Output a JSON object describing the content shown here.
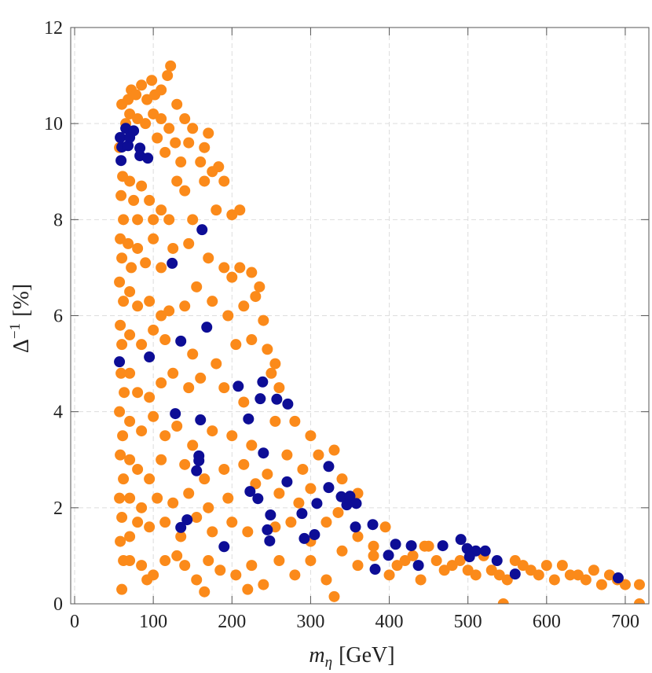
{
  "chart_data": {
    "type": "scatter",
    "xlabel": {
      "main": "m",
      "sub": "η",
      "unit": "[GeV]"
    },
    "ylabel": {
      "main": "Δ",
      "sup": "−1",
      "unit": "[%]"
    },
    "xlim": [
      -5,
      730
    ],
    "ylim": [
      0,
      12
    ],
    "xticks": [
      0,
      100,
      200,
      300,
      400,
      500,
      600,
      700
    ],
    "yticks": [
      0,
      2,
      4,
      6,
      8,
      10,
      12
    ],
    "grid": true,
    "series": [
      {
        "color": "#fb8a1a",
        "x": [
          60,
          62,
          58,
          60,
          57,
          62,
          58,
          61,
          57,
          63,
          59,
          60,
          58,
          62,
          57,
          60,
          58,
          62,
          59,
          61,
          57,
          65,
          60,
          68,
          72,
          78,
          85,
          92,
          98,
          102,
          110,
          122,
          118,
          70,
          80,
          90,
          100,
          110,
          120,
          130,
          140,
          128,
          105,
          115,
          135,
          145,
          150,
          165,
          170,
          160,
          175,
          183,
          190,
          70,
          75,
          80,
          85,
          95,
          100,
          110,
          120,
          130,
          140,
          150,
          165,
          180,
          200,
          210,
          68,
          72,
          80,
          90,
          100,
          110,
          125,
          145,
          170,
          190,
          200,
          210,
          225,
          235,
          70,
          80,
          95,
          110,
          120,
          140,
          155,
          175,
          195,
          215,
          230,
          240,
          70,
          85,
          100,
          115,
          150,
          180,
          205,
          225,
          245,
          255,
          70,
          80,
          95,
          110,
          125,
          145,
          160,
          190,
          215,
          250,
          260,
          70,
          85,
          100,
          115,
          130,
          150,
          175,
          200,
          225,
          255,
          280,
          300,
          70,
          80,
          95,
          110,
          140,
          165,
          190,
          215,
          245,
          270,
          290,
          310,
          330,
          70,
          85,
          105,
          125,
          145,
          170,
          195,
          230,
          260,
          285,
          300,
          340,
          360,
          70,
          80,
          95,
          115,
          135,
          155,
          175,
          200,
          220,
          255,
          275,
          300,
          320,
          335,
          70,
          85,
          100,
          115,
          130,
          140,
          155,
          170,
          185,
          205,
          225,
          240,
          260,
          280,
          300,
          320,
          340,
          360,
          380,
          395,
          410,
          430,
          450,
          470,
          490,
          510,
          530,
          550,
          570,
          590,
          610,
          630,
          650,
          670,
          690,
          700,
          718,
          92,
          165,
          220,
          330,
          545,
          718,
          360,
          380,
          420,
          445,
          480,
          520,
          560,
          580,
          600,
          620,
          640,
          660,
          680,
          400,
          440,
          460,
          500,
          540
        ],
        "values": [
          0.3,
          0.9,
          1.3,
          1.8,
          2.2,
          2.6,
          3.1,
          3.5,
          4.0,
          4.4,
          4.8,
          5.4,
          5.8,
          6.3,
          6.7,
          7.2,
          7.6,
          8.0,
          8.5,
          8.9,
          9.5,
          10.0,
          10.4,
          10.5,
          10.7,
          10.6,
          10.8,
          10.5,
          10.9,
          10.6,
          10.7,
          11.2,
          11.0,
          10.2,
          10.1,
          10.0,
          10.2,
          10.1,
          9.9,
          10.4,
          10.1,
          9.6,
          9.7,
          9.4,
          9.2,
          9.6,
          9.9,
          9.5,
          9.8,
          9.2,
          9.0,
          9.1,
          8.8,
          8.8,
          8.4,
          8.0,
          8.7,
          8.4,
          8.0,
          8.2,
          8.0,
          8.8,
          8.6,
          8.0,
          8.8,
          8.2,
          8.1,
          8.2,
          7.5,
          7.0,
          7.4,
          7.1,
          7.6,
          7.0,
          7.4,
          7.5,
          7.2,
          7.0,
          6.8,
          7.0,
          6.9,
          6.6,
          6.5,
          6.2,
          6.3,
          6.0,
          6.1,
          6.2,
          6.6,
          6.3,
          6.0,
          6.2,
          6.4,
          5.9,
          5.6,
          5.4,
          5.7,
          5.5,
          5.2,
          5.0,
          5.4,
          5.5,
          5.3,
          5.0,
          4.8,
          4.4,
          4.3,
          4.6,
          4.8,
          4.5,
          4.7,
          4.5,
          4.2,
          4.8,
          4.5,
          3.8,
          3.6,
          3.9,
          3.5,
          3.7,
          3.3,
          3.6,
          3.5,
          3.3,
          3.8,
          3.8,
          3.5,
          3.0,
          2.8,
          2.6,
          3.0,
          2.9,
          2.6,
          2.8,
          2.9,
          2.7,
          3.1,
          2.8,
          3.1,
          3.2,
          2.2,
          2.0,
          2.2,
          2.1,
          2.3,
          2.0,
          2.2,
          2.5,
          2.3,
          2.1,
          2.4,
          2.6,
          2.3,
          1.4,
          1.7,
          1.6,
          1.7,
          1.4,
          1.8,
          1.5,
          1.7,
          1.5,
          1.6,
          1.7,
          1.3,
          1.7,
          1.9,
          0.9,
          0.8,
          0.6,
          0.9,
          1.0,
          0.8,
          0.5,
          0.9,
          0.7,
          0.6,
          0.8,
          0.4,
          0.9,
          0.6,
          0.9,
          0.5,
          1.1,
          0.8,
          1.2,
          1.6,
          0.8,
          1.0,
          1.2,
          0.7,
          0.9,
          0.6,
          0.7,
          0.5,
          0.8,
          0.6,
          0.5,
          0.6,
          0.5,
          0.4,
          0.5,
          0.4,
          0.4,
          0.5,
          0.25,
          0.3,
          0.15,
          0.0,
          0.0,
          1.4,
          1.0,
          0.9,
          1.2,
          0.8,
          1.0,
          0.9,
          0.7,
          0.8,
          0.8,
          0.6,
          0.7,
          0.6,
          0.6,
          0.5,
          0.9,
          0.7,
          0.6
        ]
      },
      {
        "color": "#0d0d96",
        "x": [
          58,
          65,
          60,
          68,
          75,
          70,
          83,
          83,
          93,
          59,
          162,
          124,
          135,
          168,
          95,
          57,
          128,
          160,
          208,
          239,
          236,
          257,
          271,
          221,
          240,
          158,
          158,
          155,
          323,
          223,
          233,
          270,
          323,
          308,
          339,
          350,
          358,
          346,
          379,
          357,
          249,
          289,
          143,
          135,
          245,
          248,
          305,
          292,
          190,
          408,
          428,
          468,
          491,
          499,
          510,
          522,
          502,
          537,
          399,
          382,
          437,
          560,
          691
        ],
        "values": [
          9.71,
          9.9,
          9.51,
          9.54,
          9.85,
          9.71,
          9.49,
          9.33,
          9.28,
          9.23,
          7.79,
          7.09,
          5.47,
          5.76,
          5.14,
          5.04,
          3.96,
          3.83,
          4.53,
          4.62,
          4.27,
          4.26,
          4.16,
          3.85,
          3.14,
          3.08,
          2.98,
          2.77,
          2.86,
          2.34,
          2.19,
          2.54,
          2.42,
          2.09,
          2.23,
          2.24,
          2.09,
          2.06,
          1.65,
          1.6,
          1.85,
          1.88,
          1.75,
          1.59,
          1.54,
          1.31,
          1.44,
          1.36,
          1.19,
          1.24,
          1.21,
          1.21,
          1.34,
          1.15,
          1.1,
          1.1,
          0.98,
          0.9,
          1.01,
          0.72,
          0.8,
          0.62,
          0.54
        ]
      }
    ]
  }
}
